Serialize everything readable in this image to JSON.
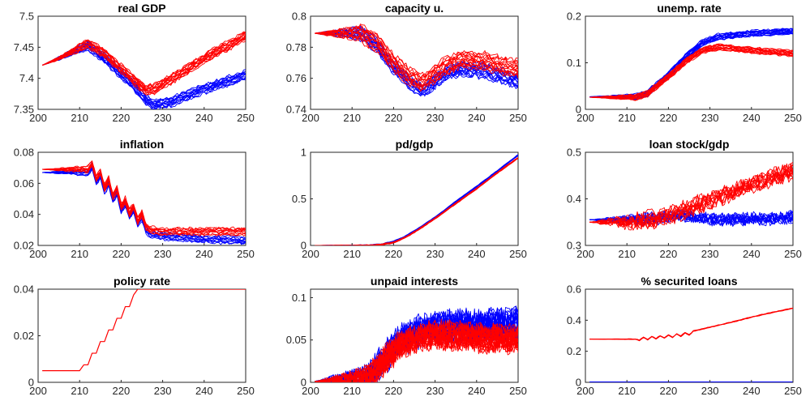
{
  "colors": {
    "series_a": "#ff0000",
    "series_b": "#0000ff",
    "axes": "#262626"
  },
  "chart_data": [
    {
      "type": "line",
      "title": "real GDP",
      "xlim": [
        200,
        250
      ],
      "ylim": [
        7.35,
        7.5
      ],
      "xticks": [
        "200",
        "210",
        "220",
        "230",
        "240",
        "250"
      ],
      "yticks": [
        {
          "v": 7.35,
          "label": "7.35"
        },
        {
          "v": 7.4,
          "label": "7.4"
        },
        {
          "v": 7.45,
          "label": "7.45"
        },
        {
          "v": 7.5,
          "label": "7.5"
        }
      ],
      "series": [
        {
          "color": "#0000ff",
          "x": [
            201,
            205,
            212,
            216,
            220,
            223,
            226,
            228,
            232,
            240,
            250
          ],
          "y": [
            7.421,
            7.432,
            7.453,
            7.432,
            7.407,
            7.388,
            7.365,
            7.357,
            7.362,
            7.383,
            7.405
          ],
          "band": 0.007,
          "noise": 0.003,
          "runs": 14
        },
        {
          "color": "#ff0000",
          "x": [
            201,
            205,
            212,
            216,
            220,
            223,
            226,
            228,
            232,
            240,
            250
          ],
          "y": [
            7.421,
            7.432,
            7.456,
            7.44,
            7.416,
            7.398,
            7.381,
            7.383,
            7.398,
            7.432,
            7.468
          ],
          "band": 0.007,
          "noise": 0.003,
          "runs": 14
        }
      ]
    },
    {
      "type": "line",
      "title": "capacity u.",
      "xlim": [
        200,
        250
      ],
      "ylim": [
        0.74,
        0.8
      ],
      "xticks": [
        "200",
        "210",
        "220",
        "230",
        "240",
        "250"
      ],
      "yticks": [
        {
          "v": 0.74,
          "label": "0.74"
        },
        {
          "v": 0.76,
          "label": "0.76"
        },
        {
          "v": 0.78,
          "label": "0.78"
        },
        {
          "v": 0.8,
          "label": "0.8"
        }
      ],
      "series": [
        {
          "color": "#0000ff",
          "x": [
            201,
            212,
            216,
            220,
            224,
            227,
            232,
            236,
            242,
            250
          ],
          "y": [
            0.789,
            0.789,
            0.781,
            0.767,
            0.757,
            0.752,
            0.762,
            0.766,
            0.765,
            0.758
          ],
          "band": 0.004,
          "noise": 0.002,
          "runs": 14
        },
        {
          "color": "#ff0000",
          "x": [
            201,
            212,
            216,
            220,
            224,
            227,
            232,
            236,
            242,
            250
          ],
          "y": [
            0.789,
            0.789,
            0.783,
            0.77,
            0.761,
            0.757,
            0.767,
            0.772,
            0.771,
            0.766
          ],
          "band": 0.005,
          "noise": 0.002,
          "runs": 14
        }
      ]
    },
    {
      "type": "line",
      "title": "unemp. rate",
      "xlim": [
        200,
        250
      ],
      "ylim": [
        0,
        0.2
      ],
      "xticks": [
        "200",
        "210",
        "220",
        "230",
        "240",
        "250"
      ],
      "yticks": [
        {
          "v": 0,
          "label": "0"
        },
        {
          "v": 0.1,
          "label": "0.1"
        },
        {
          "v": 0.2,
          "label": "0.2"
        }
      ],
      "series": [
        {
          "color": "#0000ff",
          "x": [
            201,
            212,
            215,
            220,
            224,
            228,
            232,
            240,
            250
          ],
          "y": [
            0.027,
            0.027,
            0.035,
            0.075,
            0.112,
            0.142,
            0.156,
            0.163,
            0.168
          ],
          "band": 0.006,
          "noise": 0.002,
          "runs": 14
        },
        {
          "color": "#ff0000",
          "x": [
            201,
            212,
            215,
            220,
            224,
            228,
            232,
            240,
            250
          ],
          "y": [
            0.026,
            0.026,
            0.034,
            0.07,
            0.102,
            0.126,
            0.134,
            0.127,
            0.12
          ],
          "band": 0.006,
          "noise": 0.002,
          "runs": 14
        }
      ]
    },
    {
      "type": "line",
      "title": "inflation",
      "xlim": [
        200,
        250
      ],
      "ylim": [
        0.02,
        0.08
      ],
      "xticks": [
        "200",
        "210",
        "220",
        "230",
        "240",
        "250"
      ],
      "yticks": [
        {
          "v": 0.02,
          "label": "0.02"
        },
        {
          "v": 0.04,
          "label": "0.04"
        },
        {
          "v": 0.06,
          "label": "0.06"
        },
        {
          "v": 0.08,
          "label": "0.08"
        }
      ],
      "series": [
        {
          "color": "#0000ff",
          "x": [
            201,
            212,
            213,
            214,
            215,
            216,
            217,
            218,
            219,
            220,
            221,
            222,
            223,
            224,
            225,
            226,
            227,
            230,
            240,
            250
          ],
          "y": [
            0.067,
            0.067,
            0.071,
            0.061,
            0.065,
            0.055,
            0.06,
            0.05,
            0.054,
            0.043,
            0.047,
            0.039,
            0.043,
            0.034,
            0.038,
            0.03,
            0.027,
            0.026,
            0.024,
            0.023
          ],
          "band": 0.002,
          "noise": 0.001,
          "runs": 10
        },
        {
          "color": "#ff0000",
          "x": [
            201,
            212,
            213,
            214,
            215,
            216,
            217,
            218,
            219,
            220,
            221,
            222,
            223,
            224,
            225,
            226,
            227,
            230,
            240,
            250
          ],
          "y": [
            0.069,
            0.069,
            0.073,
            0.063,
            0.067,
            0.057,
            0.062,
            0.052,
            0.056,
            0.045,
            0.049,
            0.041,
            0.045,
            0.036,
            0.04,
            0.032,
            0.03,
            0.029,
            0.029,
            0.029
          ],
          "band": 0.002,
          "noise": 0.001,
          "runs": 10
        }
      ]
    },
    {
      "type": "line",
      "title": "pd/gdp",
      "xlim": [
        200,
        250
      ],
      "ylim": [
        0,
        1
      ],
      "xticks": [
        "200",
        "210",
        "220",
        "230",
        "240",
        "250"
      ],
      "yticks": [
        {
          "v": 0,
          "label": "0"
        },
        {
          "v": 0.5,
          "label": "0.5"
        },
        {
          "v": 1,
          "label": "1"
        }
      ],
      "series": [
        {
          "color": "#0000ff",
          "x": [
            201,
            214,
            217,
            220,
            223,
            226,
            230,
            235,
            240,
            245,
            250
          ],
          "y": [
            0,
            0,
            0.01,
            0.04,
            0.1,
            0.18,
            0.3,
            0.47,
            0.63,
            0.8,
            0.97
          ],
          "band": 0.006,
          "noise": 0.003,
          "runs": 6
        },
        {
          "color": "#ff0000",
          "x": [
            201,
            214,
            217,
            220,
            223,
            226,
            230,
            235,
            240,
            245,
            250
          ],
          "y": [
            0,
            0,
            0.01,
            0.03,
            0.09,
            0.17,
            0.29,
            0.45,
            0.61,
            0.78,
            0.94
          ],
          "band": 0.006,
          "noise": 0.003,
          "runs": 6
        }
      ]
    },
    {
      "type": "line",
      "title": "loan stock/gdp",
      "xlim": [
        200,
        250
      ],
      "ylim": [
        0.3,
        0.5
      ],
      "xticks": [
        "200",
        "210",
        "220",
        "230",
        "240",
        "250"
      ],
      "yticks": [
        {
          "v": 0.3,
          "label": "0.3"
        },
        {
          "v": 0.4,
          "label": "0.4"
        },
        {
          "v": 0.5,
          "label": "0.5"
        }
      ],
      "series": [
        {
          "color": "#0000ff",
          "x": [
            201,
            212,
            218,
            222,
            226,
            230,
            235,
            240,
            245,
            250
          ],
          "y": [
            0.355,
            0.355,
            0.36,
            0.365,
            0.36,
            0.356,
            0.356,
            0.357,
            0.357,
            0.36
          ],
          "band": 0.004,
          "noise": 0.012,
          "runs": 12
        },
        {
          "color": "#ff0000",
          "x": [
            201,
            212,
            216,
            220,
            224,
            228,
            232,
            236,
            240,
            245,
            250
          ],
          "y": [
            0.35,
            0.35,
            0.356,
            0.364,
            0.376,
            0.39,
            0.405,
            0.415,
            0.43,
            0.445,
            0.46
          ],
          "band": 0.01,
          "noise": 0.014,
          "runs": 12
        }
      ]
    },
    {
      "type": "line",
      "title": "policy rate",
      "xlim": [
        200,
        250
      ],
      "ylim": [
        0,
        0.04
      ],
      "xticks": [
        "200",
        "210",
        "220",
        "230",
        "240",
        "250"
      ],
      "yticks": [
        {
          "v": 0,
          "label": "0"
        },
        {
          "v": 0.02,
          "label": "0.02"
        },
        {
          "v": 0.04,
          "label": "0.04"
        }
      ],
      "series": [
        {
          "color": "#ff0000",
          "x": [
            201,
            210,
            211,
            212,
            213,
            214,
            215,
            216,
            217,
            218,
            219,
            220,
            221,
            222,
            223,
            224,
            250
          ],
          "y": [
            0.005,
            0.005,
            0.0075,
            0.0075,
            0.0125,
            0.0125,
            0.0175,
            0.0175,
            0.0225,
            0.0225,
            0.0275,
            0.0275,
            0.0325,
            0.0325,
            0.0375,
            0.04,
            0.04
          ],
          "band": 0,
          "noise": 0,
          "runs": 1
        }
      ]
    },
    {
      "type": "line",
      "title": "unpaid interests",
      "xlim": [
        200,
        250
      ],
      "ylim": [
        0,
        0.11
      ],
      "xticks": [
        "200",
        "210",
        "220",
        "230",
        "240",
        "250"
      ],
      "yticks": [
        {
          "v": 0,
          "label": "0"
        },
        {
          "v": 0.05,
          "label": "0.05"
        },
        {
          "v": 0.1,
          "label": "0.1"
        }
      ],
      "series": [
        {
          "color": "#0000ff",
          "x": [
            201,
            212,
            214,
            218,
            222,
            226,
            230,
            235,
            240,
            245,
            250
          ],
          "y": [
            0.001,
            0.001,
            0.005,
            0.03,
            0.05,
            0.06,
            0.064,
            0.066,
            0.068,
            0.068,
            0.07
          ],
          "band": 0.004,
          "noise": 0.018,
          "runs": 22
        },
        {
          "color": "#ff0000",
          "x": [
            201,
            212,
            214,
            218,
            222,
            226,
            230,
            235,
            240,
            245,
            250
          ],
          "y": [
            0.001,
            0.001,
            0.005,
            0.027,
            0.045,
            0.053,
            0.056,
            0.055,
            0.053,
            0.052,
            0.051
          ],
          "band": 0.004,
          "noise": 0.016,
          "runs": 22
        }
      ]
    },
    {
      "type": "line",
      "title": "% securited loans",
      "xlim": [
        200,
        250
      ],
      "ylim": [
        0,
        0.6
      ],
      "xticks": [
        "200",
        "210",
        "220",
        "230",
        "240",
        "250"
      ],
      "yticks": [
        {
          "v": 0,
          "label": "0"
        },
        {
          "v": 0.2,
          "label": "0.2"
        },
        {
          "v": 0.4,
          "label": "0.4"
        },
        {
          "v": 0.6,
          "label": "0.6"
        }
      ],
      "series": [
        {
          "color": "#ff0000",
          "x": [
            201,
            212,
            213,
            214,
            215,
            216,
            217,
            218,
            219,
            220,
            221,
            222,
            223,
            224,
            225,
            226,
            230,
            235,
            240,
            245,
            250
          ],
          "y": [
            0.278,
            0.278,
            0.27,
            0.29,
            0.275,
            0.295,
            0.28,
            0.3,
            0.285,
            0.305,
            0.29,
            0.312,
            0.297,
            0.32,
            0.305,
            0.33,
            0.355,
            0.385,
            0.42,
            0.45,
            0.478
          ],
          "band": 0.002,
          "noise": 0.002,
          "runs": 4
        },
        {
          "color": "#0000ff",
          "x": [
            201,
            250
          ],
          "y": [
            0.002,
            0.002
          ],
          "band": 0,
          "noise": 0,
          "runs": 1
        }
      ]
    }
  ]
}
